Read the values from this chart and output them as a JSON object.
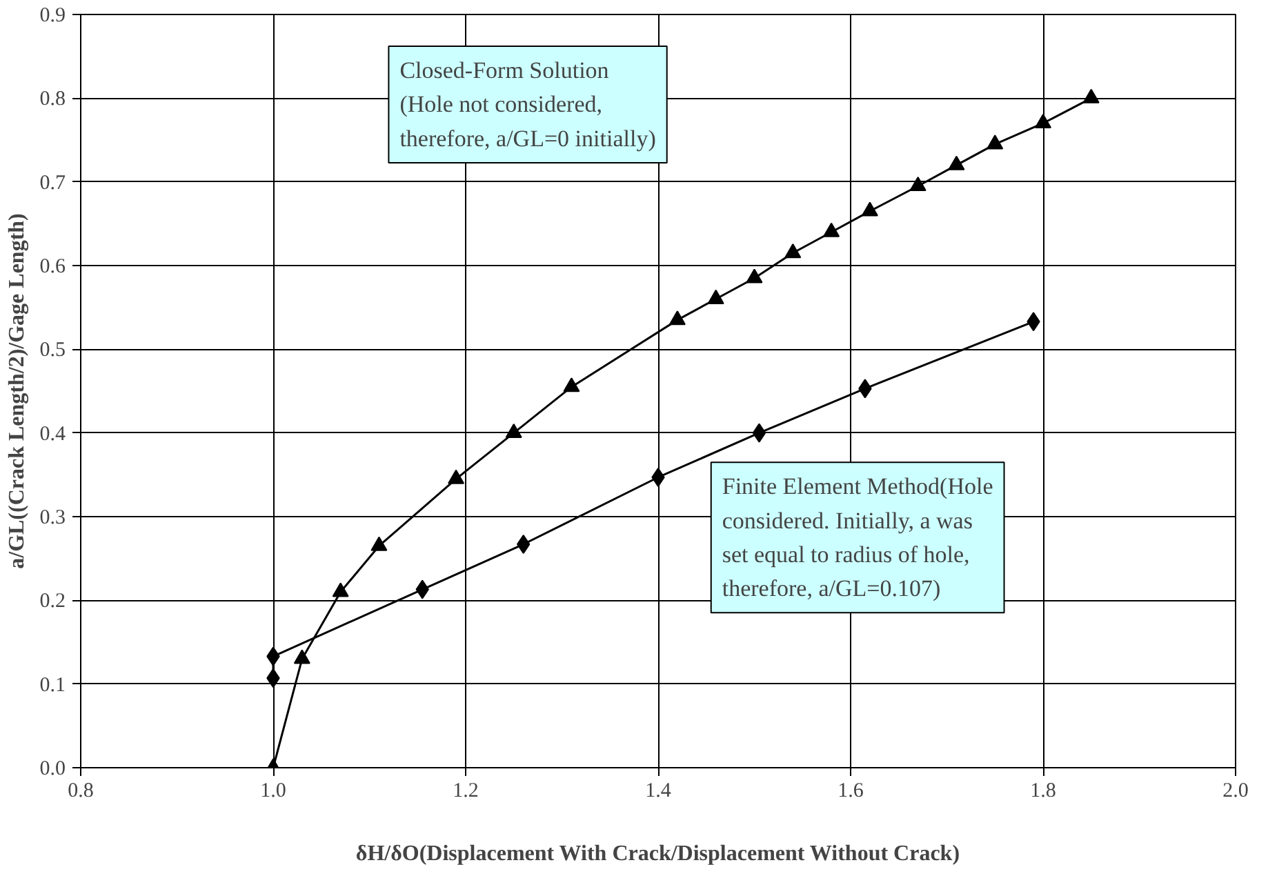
{
  "chart_data": {
    "type": "line",
    "xlabel": "δH/δO(Displacement With Crack/Displacement Without Crack)",
    "ylabel": "a/GL((Crack Length/2)/Gage Length)",
    "xlim": [
      0.8,
      2.0
    ],
    "xticks": [
      {
        "value": 0.8,
        "label": "0.8"
      },
      {
        "value": 1.0,
        "label": "1.0"
      },
      {
        "value": 1.2,
        "label": "1.2"
      },
      {
        "value": 1.4,
        "label": "1.4"
      },
      {
        "value": 1.6,
        "label": "1.6"
      },
      {
        "value": 1.8,
        "label": "1.8"
      },
      {
        "value": 2.0,
        "label": "2.0"
      }
    ],
    "ylim": [
      0,
      0.9
    ],
    "yticks": [
      {
        "value": 0,
        "label": "0.0"
      },
      {
        "value": 0.1,
        "label": "0.1"
      },
      {
        "value": 0.2,
        "label": "0.2"
      },
      {
        "value": 0.3,
        "label": "0.3"
      },
      {
        "value": 0.4,
        "label": "0.4"
      },
      {
        "value": 0.5,
        "label": "0.5"
      },
      {
        "value": 0.6,
        "label": "0.6"
      },
      {
        "value": 0.7,
        "label": "0.7"
      },
      {
        "value": 0.8,
        "label": "0.8"
      },
      {
        "value": 0.9,
        "label": "0.9"
      }
    ],
    "grid": true,
    "series": [
      {
        "color": "#000000",
        "marker": "triangle",
        "x": [
          1.0,
          1.03,
          1.07,
          1.11,
          1.19,
          1.25,
          1.31,
          1.42,
          1.46,
          1.5,
          1.54,
          1.58,
          1.62,
          1.67,
          1.71,
          1.75,
          1.8,
          1.85
        ],
        "values": [
          0.0,
          0.13,
          0.21,
          0.265,
          0.345,
          0.4,
          0.455,
          0.535,
          0.56,
          0.585,
          0.615,
          0.64,
          0.665,
          0.695,
          0.72,
          0.745,
          0.77,
          0.8
        ]
      },
      {
        "color": "#000000",
        "marker": "diamond",
        "x": [
          1.0,
          1.0,
          1.155,
          1.26,
          1.4,
          1.505,
          1.615,
          1.79
        ],
        "values": [
          0.107,
          0.133,
          0.213,
          0.267,
          0.347,
          0.4,
          0.453,
          0.533
        ]
      }
    ],
    "annotations": [
      "Closed-Form Solution\n(Hole not considered,\ntherefore, a/GL=0 initially)",
      "Finite Element Method(Hole\nconsidered. Initially, a was\nset equal to radius of hole,\ntherefore, a/GL=0.107)"
    ]
  }
}
